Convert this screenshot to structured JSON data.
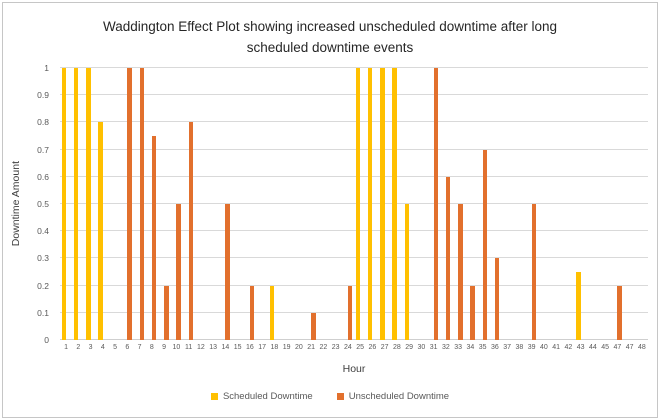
{
  "frame": {
    "background": "#FFFFFF",
    "border_color": "#C6C6C6"
  },
  "chart_data": {
    "type": "bar",
    "title": "Waddington Effect Plot showing increased unscheduled downtime after long scheduled downtime events",
    "title_lines": [
      "Waddington Effect Plot showing increased unscheduled downtime after long",
      "scheduled downtime events"
    ],
    "xlabel": "Hour",
    "ylabel": "Downtime Amount",
    "ylim": [
      0,
      1
    ],
    "yticks": [
      "1",
      "0.9",
      "0.8",
      "0.7",
      "0.6",
      "0.5",
      "0.4",
      "0.3",
      "0.2",
      "0.1",
      "0"
    ],
    "grid": "horizontal gridlines only",
    "legend_position": "bottom center",
    "categories": [
      "1",
      "2",
      "3",
      "4",
      "5",
      "6",
      "7",
      "8",
      "9",
      "10",
      "11",
      "12",
      "13",
      "14",
      "15",
      "16",
      "17",
      "18",
      "19",
      "20",
      "21",
      "22",
      "23",
      "24",
      "25",
      "26",
      "27",
      "28",
      "29",
      "30",
      "31",
      "32",
      "33",
      "34",
      "35",
      "36",
      "37",
      "38",
      "39",
      "40",
      "41",
      "42",
      "43",
      "44",
      "45",
      "47",
      "47",
      "48"
    ],
    "series": [
      {
        "name": "Scheduled Downtime",
        "color": "#FFC000",
        "values": [
          1,
          1,
          1,
          0.8,
          null,
          null,
          null,
          null,
          null,
          null,
          null,
          null,
          null,
          null,
          null,
          null,
          null,
          0.2,
          null,
          null,
          null,
          null,
          null,
          null,
          1,
          1,
          1,
          1,
          0.5,
          null,
          null,
          null,
          null,
          null,
          null,
          null,
          null,
          null,
          null,
          null,
          null,
          null,
          0.25,
          null,
          null,
          null,
          null,
          null
        ]
      },
      {
        "name": "Unscheduled Downtime",
        "color": "#E2702D",
        "values": [
          null,
          null,
          null,
          null,
          null,
          1,
          1,
          0.75,
          0.2,
          0.5,
          0.8,
          null,
          null,
          0.5,
          null,
          0.2,
          null,
          null,
          null,
          null,
          0.1,
          null,
          null,
          0.2,
          null,
          null,
          null,
          null,
          null,
          null,
          1,
          0.6,
          0.5,
          0.2,
          0.7,
          0.3,
          null,
          null,
          0.5,
          null,
          null,
          null,
          null,
          null,
          null,
          0.2,
          null,
          null
        ]
      }
    ],
    "colors": {
      "gridline": "#D9D9D9",
      "axis_line": "#CFCFCF",
      "tick_text": "#595959",
      "axis_title_text": "#404040",
      "title_text": "#262626"
    }
  }
}
